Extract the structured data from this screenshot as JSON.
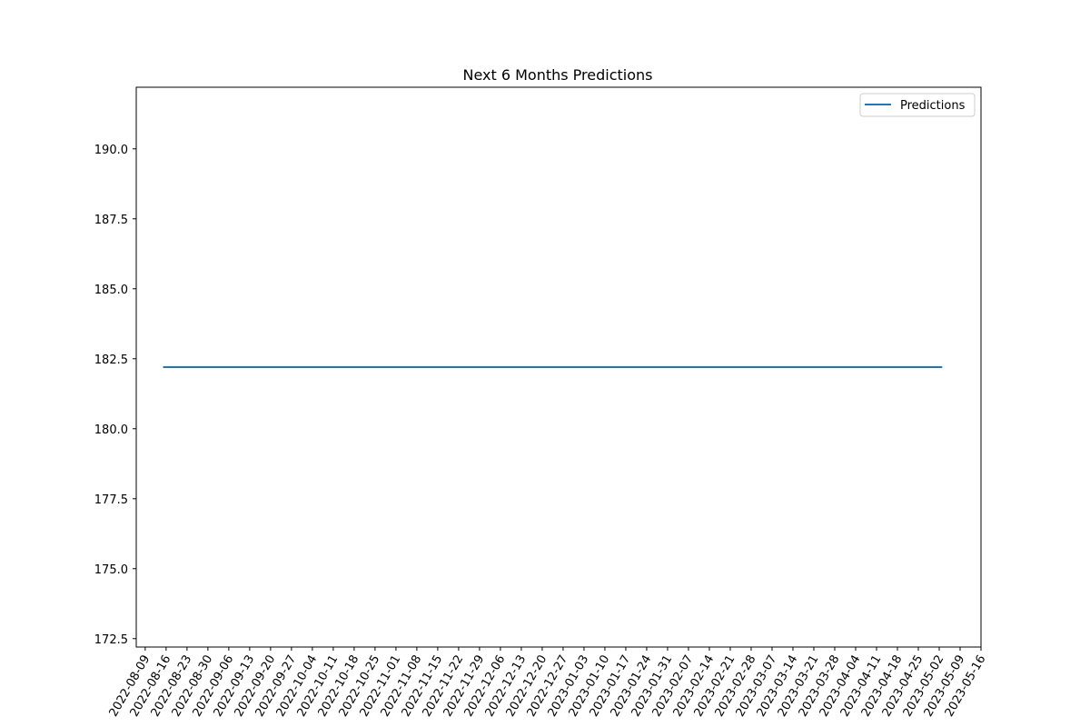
{
  "chart_data": {
    "type": "line",
    "title": "Next 6 Months Predictions",
    "xlabel": "",
    "ylabel": "",
    "legend_position": "top-right",
    "grid": false,
    "x_tick_labels": [
      "2022-08-09",
      "2022-08-16",
      "2022-08-23",
      "2022-08-30",
      "2022-09-06",
      "2022-09-13",
      "2022-09-20",
      "2022-09-27",
      "2022-10-04",
      "2022-10-11",
      "2022-10-18",
      "2022-10-25",
      "2022-11-01",
      "2022-11-08",
      "2022-11-15",
      "2022-11-22",
      "2022-11-29",
      "2022-12-06",
      "2022-12-13",
      "2022-12-20",
      "2022-12-27",
      "2023-01-03",
      "2023-01-10",
      "2023-01-17",
      "2023-01-24",
      "2023-01-31",
      "2023-02-07",
      "2023-02-14",
      "2023-02-21",
      "2023-02-28",
      "2023-03-07",
      "2023-03-14",
      "2023-03-21",
      "2023-03-28",
      "2023-04-04",
      "2023-04-11",
      "2023-04-18",
      "2023-04-25",
      "2023-05-02",
      "2023-05-09",
      "2023-05-16"
    ],
    "y_ticks": [
      172.5,
      175.0,
      177.5,
      180.0,
      182.5,
      185.0,
      187.5,
      190.0
    ],
    "ylim": [
      172.2,
      192.2
    ],
    "xlim": [
      "2022-08-06",
      "2023-05-16"
    ],
    "series": [
      {
        "name": "Predictions",
        "color": "#1f77b4",
        "x": [
          "2022-08-15",
          "2023-05-03"
        ],
        "y": [
          182.2,
          182.2
        ]
      }
    ]
  }
}
